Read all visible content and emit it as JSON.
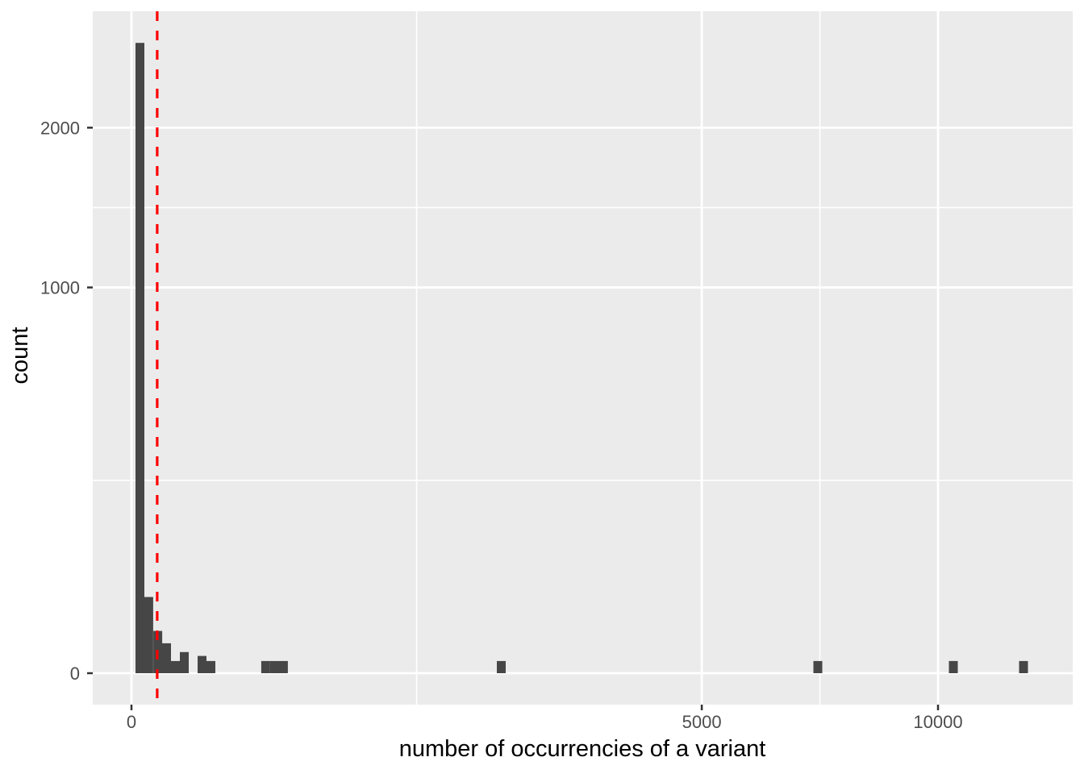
{
  "figure": {
    "background_color": "#FFFFFF",
    "panel_color": "#EBEBEB",
    "grid_color": "#FFFFFF",
    "bar_color": "#464646",
    "tick_mark_color": "#333333",
    "tick_label_color": "#4D4D4D",
    "axis_title_color": "#000000"
  },
  "chart_data": {
    "type": "bar",
    "subtype": "histogram",
    "title": "",
    "xlabel": "number of occurrencies of a variant",
    "ylabel": "count",
    "x_scale": "sqrt",
    "y_scale": "sqrt",
    "legend": "none",
    "x_axis_range": [
      0,
      13600
    ],
    "y_axis_range": [
      0,
      2930
    ],
    "x_ticks": [
      {
        "value": 0,
        "label": "0"
      },
      {
        "value": 5000,
        "label": "5000"
      },
      {
        "value": 10000,
        "label": "10000"
      }
    ],
    "y_ticks": [
      {
        "value": 0,
        "label": "0"
      },
      {
        "value": 1000,
        "label": "1000"
      },
      {
        "value": 2000,
        "label": "2000"
      }
    ],
    "x_minor_breaks": [
      1250,
      7286
    ],
    "y_minor_breaks": [
      250,
      1457
    ],
    "binwidth_sqrt": 1.1,
    "bins": [
      {
        "x": 1.1,
        "count": 2670
      },
      {
        "x": 4.6,
        "count": 39
      },
      {
        "x": 10.6,
        "count": 12
      },
      {
        "x": 18.9,
        "count": 6
      },
      {
        "x": 29.7,
        "count": 1
      },
      {
        "x": 42.9,
        "count": 3
      },
      {
        "x": 76.6,
        "count": 2
      },
      {
        "x": 97,
        "count": 1
      },
      {
        "x": 277,
        "count": 1
      },
      {
        "x": 315,
        "count": 1
      },
      {
        "x": 355,
        "count": 1
      },
      {
        "x": 2102,
        "count": 1
      },
      {
        "x": 7242,
        "count": 1
      },
      {
        "x": 10384,
        "count": 1
      },
      {
        "x": 12232,
        "count": 1
      }
    ],
    "vline": {
      "x": 10.2,
      "style": "dashed",
      "color": "#FF0000"
    }
  }
}
